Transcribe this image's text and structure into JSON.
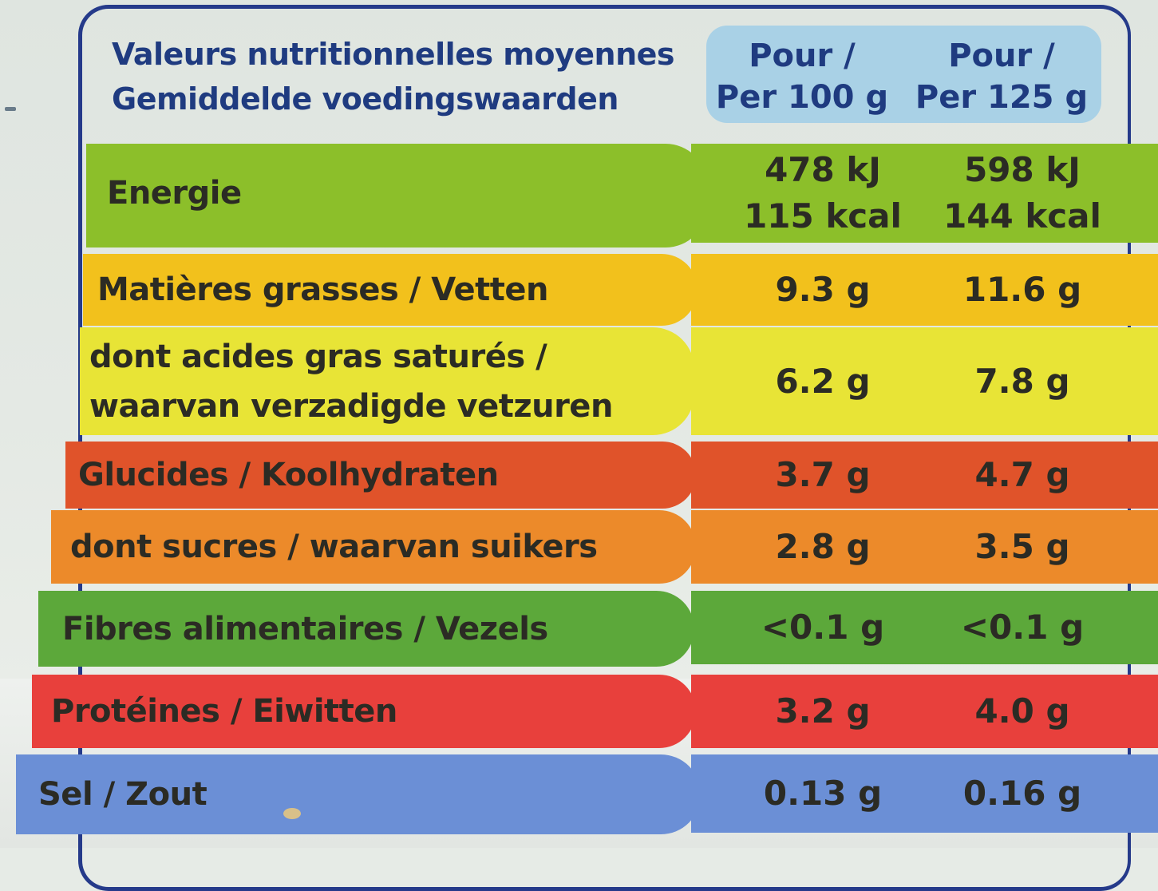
{
  "header": {
    "title_fr": "Valeurs nutritionnelles moyennes",
    "title_nl": "Gemiddelde voedingswaarden",
    "col1_line1": "Pour /",
    "col1_line2": "Per 100 g",
    "col2_line1": "Pour /",
    "col2_line2": "Per 125 g"
  },
  "rows": [
    {
      "label": "Energie",
      "v100_a": "478 kJ",
      "v100_b": "115 kcal",
      "v125_a": "598 kJ",
      "v125_b": "144 kcal",
      "color": "#8cbf2a"
    },
    {
      "label": "Matières grasses / Vetten",
      "v100": "9.3 g",
      "v125": "11.6 g",
      "color": "#f2c11c"
    },
    {
      "label_a": "dont acides gras saturés /",
      "label_b": "waarvan verzadigde vetzuren",
      "v100": "6.2 g",
      "v125": "7.8 g",
      "color": "#e8e436"
    },
    {
      "label": "Glucides / Koolhydraten",
      "v100": "3.7 g",
      "v125": "4.7 g",
      "color": "#e0532a"
    },
    {
      "label": "dont sucres / waarvan suikers",
      "v100": "2.8 g",
      "v125": "3.5 g",
      "color": "#ec8a2a"
    },
    {
      "label": "Fibres alimentaires / Vezels",
      "v100": "<0.1 g",
      "v125": "<0.1 g",
      "color": "#5ca83a"
    },
    {
      "label": "Protéines / Eiwitten",
      "v100": "3.2 g",
      "v125": "4.0 g",
      "color": "#e8403c"
    },
    {
      "label": "Sel / Zout",
      "v100": "0.13 g",
      "v125": "0.16 g",
      "color": "#6b8fd6"
    }
  ],
  "colors": {
    "frame": "#253a8a",
    "text_blue": "#1f3b80",
    "header_bg": "#a9d1e6"
  }
}
